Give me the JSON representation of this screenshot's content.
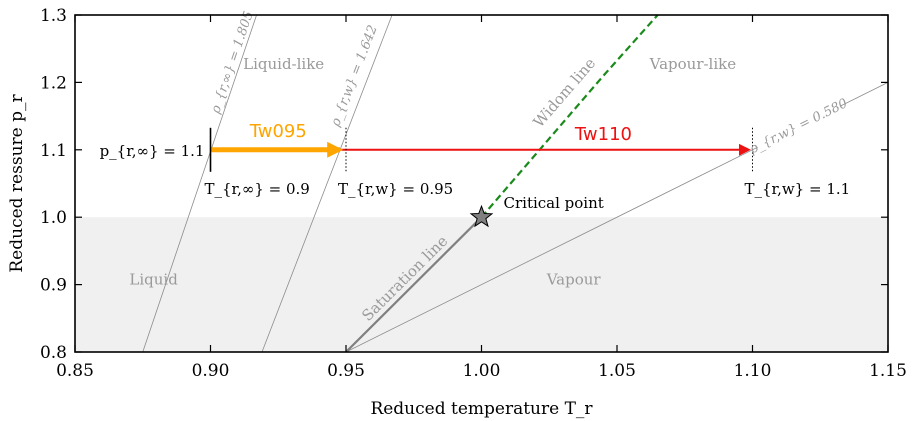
{
  "chart_data": {
    "type": "line",
    "xlabel": "Reduced temperature T_r",
    "ylabel": "Reduced ressure p_r",
    "xlim": [
      0.85,
      1.15
    ],
    "ylim": [
      0.8,
      1.3
    ],
    "xticks": [
      "0.85",
      "0.90",
      "0.95",
      "1.00",
      "1.05",
      "1.10",
      "1.15"
    ],
    "yticks": [
      "0.8",
      "0.9",
      "1.0",
      "1.1",
      "1.2",
      "1.3"
    ],
    "grid": false,
    "subcritical_band": {
      "y_from": 0.8,
      "y_to": 1.0,
      "color": "#f0f0f0"
    },
    "series": [
      {
        "name": "Saturation line",
        "color": "#808080",
        "style": "solid",
        "x": [
          0.95,
          1.0
        ],
        "y": [
          0.8,
          1.0
        ]
      },
      {
        "name": "Widom line",
        "color": "#1a8a1a",
        "style": "dashed",
        "x": [
          1.0,
          1.015,
          1.03,
          1.045,
          1.065
        ],
        "y": [
          1.0,
          1.07,
          1.14,
          1.21,
          1.3
        ]
      }
    ],
    "isochores": [
      {
        "label": "ρ_{r,∞} = 1.805",
        "x": [
          0.875,
          0.917
        ],
        "y": [
          0.8,
          1.3
        ],
        "label_x": 0.908,
        "label_y": 1.23
      },
      {
        "label": "ρ_{r,w} = 1.642",
        "x": [
          0.919,
          0.967
        ],
        "y": [
          0.8,
          1.3
        ],
        "label_x": 0.953,
        "label_y": 1.21
      },
      {
        "label": "ρ_{r,w} = 0.580",
        "x": [
          0.95,
          1.15
        ],
        "y": [
          0.8,
          1.2
        ],
        "label_x": 1.117,
        "label_y": 1.135
      },
      {
        "label": "",
        "x": [
          0.95,
          1.0
        ],
        "y": [
          0.8,
          1.0
        ]
      }
    ],
    "arrows": [
      {
        "name": "Tw110",
        "color": "#ee1111",
        "x_from": 0.9,
        "x_to": 1.1,
        "y": 1.1
      },
      {
        "name": "Tw095",
        "color": "#ffa500",
        "x_from": 0.9,
        "x_to": 0.95,
        "y": 1.1
      }
    ],
    "critical_point": {
      "label": "Critical point",
      "x": 1.0,
      "y": 1.0
    },
    "annotations": [
      {
        "text": "p_{r,∞} = 1.1",
        "x": 0.9,
        "y": 1.1
      },
      {
        "text": "T_{r,∞} = 0.9",
        "x": 0.9,
        "y": 1.1
      },
      {
        "text": "T_{r,w} = 0.95",
        "x": 0.95,
        "y": 1.1
      },
      {
        "text": "T_{r,w} = 1.1",
        "x": 1.1,
        "y": 1.1
      }
    ],
    "regions": [
      {
        "text": "Liquid-like",
        "x": 0.927,
        "y": 1.22
      },
      {
        "text": "Vapour-like",
        "x": 1.078,
        "y": 1.22
      },
      {
        "text": "Liquid",
        "x": 0.879,
        "y": 0.9
      },
      {
        "text": "Vapour",
        "x": 1.034,
        "y": 0.9
      }
    ]
  }
}
